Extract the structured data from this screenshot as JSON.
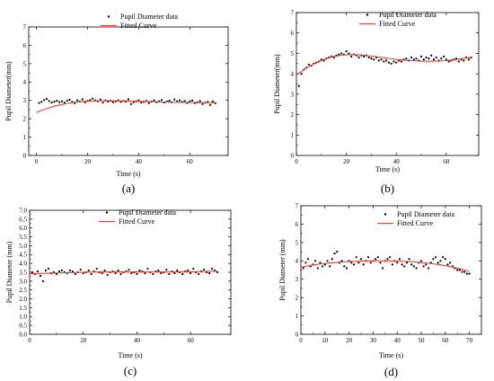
{
  "chart_data": [
    {
      "type": "scatter",
      "panel_label": "(a)",
      "xlabel": "Time (s)",
      "ylabel": "Pupil Diameter(mm)",
      "xlim": [
        -3,
        75
      ],
      "ylim": [
        0,
        7
      ],
      "xticks": [
        0,
        20,
        40,
        60
      ],
      "yticks": [
        0,
        1,
        2,
        3,
        4,
        5,
        6,
        7
      ],
      "legend_position": "top-right",
      "series": [
        {
          "name": "Pupil Diameter data",
          "kind": "points",
          "color": "#000000",
          "x": [
            1,
            2,
            3,
            4,
            5,
            6,
            7,
            8,
            9,
            10,
            11,
            12,
            13,
            14,
            15,
            16,
            17,
            18,
            19,
            20,
            21,
            22,
            23,
            24,
            25,
            26,
            27,
            28,
            29,
            30,
            31,
            32,
            33,
            34,
            35,
            36,
            37,
            38,
            39,
            40,
            41,
            42,
            43,
            44,
            45,
            46,
            47,
            48,
            49,
            50,
            51,
            52,
            53,
            54,
            55,
            56,
            57,
            58,
            59,
            60,
            61,
            62,
            63,
            64,
            65,
            66,
            67,
            68,
            69,
            70
          ],
          "y": [
            2.86,
            2.92,
            3.02,
            3.08,
            2.96,
            2.88,
            2.93,
            2.98,
            2.9,
            2.95,
            2.87,
            2.99,
            3.03,
            2.92,
            2.85,
            3.0,
            2.94,
            3.06,
            2.9,
            2.97,
            3.02,
            3.1,
            3.0,
            2.95,
            3.05,
            2.88,
            3.0,
            2.93,
            2.98,
            2.9,
            2.95,
            3.0,
            2.92,
            2.97,
            2.94,
            3.06,
            2.8,
            2.9,
            2.95,
            3.0,
            2.88,
            2.92,
            2.97,
            2.85,
            2.93,
            3.0,
            2.9,
            2.95,
            3.02,
            2.88,
            2.94,
            2.98,
            2.9,
            3.05,
            2.95,
            3.0,
            2.92,
            2.97,
            2.86,
            2.95,
            3.0,
            2.85,
            2.9,
            2.96,
            2.8,
            2.88,
            2.92,
            2.75,
            2.95,
            2.85
          ]
        },
        {
          "name": "Fitted Curve",
          "kind": "curve",
          "color": "#e0413a",
          "x": [
            0,
            5,
            10,
            15,
            20,
            25,
            30,
            35,
            40,
            45,
            50,
            55,
            60,
            65,
            70
          ],
          "y": [
            2.35,
            2.6,
            2.78,
            2.9,
            2.96,
            2.98,
            2.98,
            2.97,
            2.95,
            2.93,
            2.91,
            2.9,
            2.89,
            2.88,
            2.88
          ]
        }
      ]
    },
    {
      "type": "scatter",
      "panel_label": "(b)",
      "xlabel": "Time (s)",
      "ylabel": "Pupil Diameter(mm)",
      "xlim": [
        0,
        73
      ],
      "ylim": [
        0,
        7
      ],
      "xticks": [
        0,
        20,
        40,
        60
      ],
      "yticks": [
        0,
        1,
        2,
        3,
        4,
        5,
        6,
        7
      ],
      "legend_position": "top-right",
      "series": [
        {
          "name": "Pupil Diameter data",
          "kind": "points",
          "color": "#000000",
          "x": [
            1,
            2,
            3,
            4,
            5,
            6,
            7,
            8,
            9,
            10,
            11,
            12,
            13,
            14,
            15,
            16,
            17,
            18,
            19,
            20,
            21,
            22,
            23,
            24,
            25,
            26,
            27,
            28,
            29,
            30,
            31,
            32,
            33,
            34,
            35,
            36,
            37,
            38,
            39,
            40,
            41,
            42,
            43,
            44,
            45,
            46,
            47,
            48,
            49,
            50,
            51,
            52,
            53,
            54,
            55,
            56,
            57,
            58,
            59,
            60,
            61,
            62,
            63,
            64,
            65,
            66,
            67,
            68,
            69,
            70
          ],
          "y": [
            3.4,
            4.0,
            4.2,
            4.3,
            4.45,
            4.4,
            4.5,
            4.55,
            4.6,
            4.7,
            4.65,
            4.75,
            4.8,
            4.85,
            4.8,
            4.9,
            4.95,
            5.0,
            4.95,
            5.1,
            5.0,
            4.85,
            4.95,
            4.9,
            4.8,
            4.9,
            4.85,
            4.9,
            4.8,
            4.75,
            4.7,
            4.8,
            4.65,
            4.7,
            4.6,
            4.65,
            4.55,
            4.5,
            4.6,
            4.55,
            4.65,
            4.6,
            4.7,
            4.75,
            4.65,
            4.8,
            4.7,
            4.75,
            4.65,
            4.85,
            4.7,
            4.8,
            4.75,
            4.9,
            4.7,
            4.8,
            4.65,
            4.75,
            4.85,
            4.7,
            4.6,
            4.65,
            4.7,
            4.75,
            4.6,
            4.7,
            4.65,
            4.8,
            4.7,
            4.8
          ]
        },
        {
          "name": "Fitted Curve",
          "kind": "curve",
          "color": "#e0413a",
          "x": [
            0,
            5,
            10,
            15,
            20,
            25,
            30,
            35,
            40,
            45,
            50,
            55,
            60,
            65,
            70
          ],
          "y": [
            3.95,
            4.35,
            4.65,
            4.85,
            4.93,
            4.93,
            4.87,
            4.79,
            4.71,
            4.65,
            4.62,
            4.62,
            4.65,
            4.72,
            4.82
          ]
        }
      ]
    },
    {
      "type": "scatter",
      "panel_label": "(c)",
      "xlabel": "Time  (s)",
      "ylabel": "Pupil Diameter  (mm)",
      "xlim": [
        0,
        75
      ],
      "ylim": [
        0,
        7
      ],
      "xticks": [
        0,
        20,
        40,
        60
      ],
      "yticks": [
        0.0,
        0.5,
        1.0,
        1.5,
        2.0,
        2.5,
        3.0,
        3.5,
        4.0,
        4.5,
        5.0,
        5.5,
        6.0,
        6.5,
        7.0
      ],
      "yticklabels": [
        "0.0",
        "0.5",
        "1.0",
        "1.5",
        "2.0",
        "2.5",
        "3.0",
        "3.5",
        "4.0",
        "4.5",
        "5.0",
        "5.5",
        "6.0",
        "6.5",
        "7.0"
      ],
      "legend_position": "top-right",
      "series": [
        {
          "name": "Pupil Diameter data",
          "kind": "points",
          "color": "#000000",
          "x": [
            1,
            2,
            3,
            4,
            5,
            6,
            7,
            8,
            9,
            10,
            11,
            12,
            13,
            14,
            15,
            16,
            17,
            18,
            19,
            20,
            21,
            22,
            23,
            24,
            25,
            26,
            27,
            28,
            29,
            30,
            31,
            32,
            33,
            34,
            35,
            36,
            37,
            38,
            39,
            40,
            41,
            42,
            43,
            44,
            45,
            46,
            47,
            48,
            49,
            50,
            51,
            52,
            53,
            54,
            55,
            56,
            57,
            58,
            59,
            60,
            61,
            62,
            63,
            64,
            65,
            66,
            67,
            68,
            69,
            70
          ],
          "y": [
            3.5,
            3.4,
            3.55,
            3.3,
            3.0,
            3.6,
            3.7,
            3.45,
            3.5,
            3.4,
            3.55,
            3.6,
            3.5,
            3.45,
            3.6,
            3.55,
            3.4,
            3.5,
            3.65,
            3.45,
            3.5,
            3.6,
            3.4,
            3.55,
            3.7,
            3.5,
            3.45,
            3.6,
            3.35,
            3.5,
            3.55,
            3.45,
            3.6,
            3.4,
            3.5,
            3.55,
            3.65,
            3.45,
            3.5,
            3.4,
            3.6,
            3.55,
            3.45,
            3.7,
            3.5,
            3.4,
            3.55,
            3.6,
            3.45,
            3.5,
            3.65,
            3.4,
            3.55,
            3.45,
            3.6,
            3.5,
            3.4,
            3.55,
            3.6,
            3.45,
            3.7,
            3.5,
            3.4,
            3.55,
            3.65,
            3.5,
            3.45,
            3.7,
            3.6,
            3.5
          ]
        },
        {
          "name": "Fitted Curve",
          "kind": "curve",
          "color": "#e0413a",
          "x": [
            0,
            10,
            20,
            30,
            40,
            50,
            60,
            70
          ],
          "y": [
            3.42,
            3.46,
            3.5,
            3.52,
            3.52,
            3.52,
            3.53,
            3.56
          ]
        }
      ]
    },
    {
      "type": "scatter",
      "panel_label": "(d)",
      "xlabel": "Time  (s)",
      "ylabel": "Pupil Diameter  (mm)",
      "xlim": [
        0,
        75
      ],
      "ylim": [
        0,
        7
      ],
      "xticks": [
        0,
        10,
        20,
        30,
        40,
        50,
        60,
        70
      ],
      "yticks": [
        0,
        1,
        2,
        3,
        4,
        5,
        6,
        7
      ],
      "legend_position": "top-right",
      "series": [
        {
          "name": "Pupil Diameter data",
          "kind": "points",
          "color": "#000000",
          "x": [
            1,
            2,
            3,
            4,
            5,
            6,
            7,
            8,
            9,
            10,
            11,
            12,
            13,
            14,
            15,
            16,
            17,
            18,
            19,
            20,
            21,
            22,
            23,
            24,
            25,
            26,
            27,
            28,
            29,
            30,
            31,
            32,
            33,
            34,
            35,
            36,
            37,
            38,
            39,
            40,
            41,
            42,
            43,
            44,
            45,
            46,
            47,
            48,
            49,
            50,
            51,
            52,
            53,
            54,
            55,
            56,
            57,
            58,
            59,
            60,
            61,
            62,
            63,
            64,
            65,
            66,
            67,
            68,
            69,
            70
          ],
          "y": [
            3.6,
            3.9,
            4.1,
            3.7,
            3.8,
            4.0,
            3.6,
            3.9,
            3.7,
            3.8,
            4.0,
            3.7,
            4.1,
            4.4,
            4.5,
            3.9,
            4.0,
            3.7,
            3.6,
            4.0,
            3.9,
            3.8,
            4.2,
            3.9,
            4.1,
            3.8,
            4.0,
            4.2,
            3.9,
            4.0,
            4.1,
            4.2,
            3.9,
            3.6,
            4.0,
            4.1,
            4.2,
            3.8,
            4.0,
            3.9,
            4.1,
            3.8,
            3.7,
            3.9,
            4.1,
            3.8,
            3.7,
            3.6,
            3.9,
            4.0,
            3.7,
            3.8,
            3.6,
            3.9,
            4.1,
            4.2,
            3.9,
            4.0,
            4.2,
            4.1,
            3.8,
            3.9,
            3.7,
            3.6,
            3.5,
            3.5,
            3.4,
            3.4,
            3.3,
            3.3
          ]
        },
        {
          "name": "Fitted Curve",
          "kind": "curve",
          "color": "#e0413a",
          "x": [
            0,
            5,
            10,
            15,
            20,
            25,
            30,
            35,
            40,
            45,
            50,
            55,
            60,
            65,
            70
          ],
          "y": [
            3.65,
            3.78,
            3.86,
            3.92,
            3.96,
            3.99,
            4.0,
            4.0,
            3.99,
            3.96,
            3.91,
            3.84,
            3.74,
            3.6,
            3.42
          ]
        }
      ]
    }
  ]
}
